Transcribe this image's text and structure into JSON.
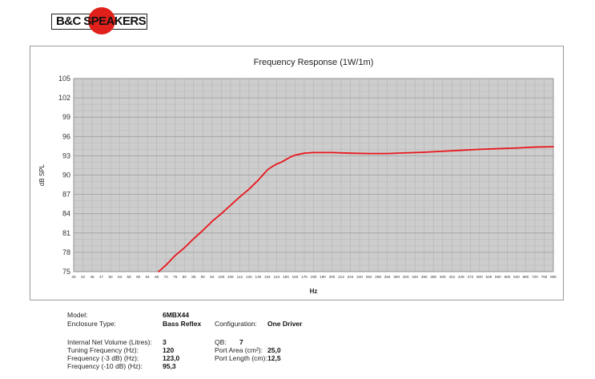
{
  "brand": {
    "name": "B&C SPEAKERS"
  },
  "chart_data": {
    "type": "line",
    "title": "Frequency Response (1W/1m)",
    "xlabel": "Hz",
    "ylabel": "dB SPL",
    "ylim": [
      75,
      105
    ],
    "yticks": [
      75,
      78,
      81,
      84,
      87,
      90,
      93,
      96,
      99,
      102,
      105
    ],
    "xticks": [
      "40",
      "42",
      "45",
      "47",
      "50",
      "53",
      "56",
      "60",
      "64",
      "68",
      "72",
      "76",
      "80",
      "85",
      "90",
      "94",
      "100",
      "106",
      "112",
      "120",
      "126",
      "134",
      "142",
      "150",
      "160",
      "170",
      "180",
      "190",
      "200",
      "212",
      "224",
      "240",
      "252",
      "268",
      "284",
      "300",
      "320",
      "340",
      "360",
      "380",
      "400",
      "424",
      "448",
      "472",
      "500",
      "528",
      "560",
      "600",
      "640",
      "680",
      "720",
      "760",
      "800"
    ],
    "grid": true,
    "series": [
      {
        "color": "#e8161c",
        "points": [
          [
            9.2,
            75.0
          ],
          [
            10,
            76.0
          ],
          [
            11,
            77.5
          ],
          [
            12,
            78.7
          ],
          [
            13,
            80.1
          ],
          [
            14,
            81.4
          ],
          [
            15,
            82.8
          ],
          [
            16,
            84.0
          ],
          [
            17,
            85.3
          ],
          [
            18,
            86.6
          ],
          [
            19,
            87.8
          ],
          [
            20,
            89.2
          ],
          [
            20.5,
            90.0
          ],
          [
            21,
            90.8
          ],
          [
            21.5,
            91.3
          ],
          [
            22,
            91.7
          ],
          [
            22.5,
            92.0
          ],
          [
            23,
            92.4
          ],
          [
            23.5,
            92.8
          ],
          [
            24,
            93.1
          ],
          [
            25,
            93.4
          ],
          [
            26,
            93.5
          ],
          [
            27,
            93.5
          ],
          [
            28,
            93.5
          ],
          [
            30,
            93.4
          ],
          [
            32,
            93.35
          ],
          [
            34,
            93.35
          ],
          [
            36,
            93.45
          ],
          [
            38,
            93.55
          ],
          [
            40,
            93.7
          ],
          [
            42,
            93.85
          ],
          [
            44,
            94.0
          ],
          [
            46,
            94.1
          ],
          [
            48,
            94.2
          ],
          [
            50,
            94.35
          ],
          [
            52,
            94.4
          ]
        ]
      }
    ]
  },
  "specs": {
    "model_label": "Model:",
    "model_value": "6MBX44",
    "enclosure_label": "Enclosure Type:",
    "enclosure_value": "Bass Reflex",
    "configuration_label": "Configuration:",
    "configuration_value": "One Driver",
    "volume_label": "Internal Net Volume (Litres):",
    "volume_value": "3",
    "qb_label": "QB:",
    "qb_value": "7",
    "tuning_label": "Tuning Frequency (Hz):",
    "tuning_value": "120",
    "port_area_label": "Port Area (cm²):",
    "port_area_value": "25,0",
    "f3_label": "Frequency (-3 dB) (Hz):",
    "f3_value": "123,0",
    "port_length_label": "Port Length (cm):",
    "port_length_value": "12,5",
    "f10_label": "Frequency (-10 dB) (Hz):",
    "f10_value": "95,3"
  }
}
